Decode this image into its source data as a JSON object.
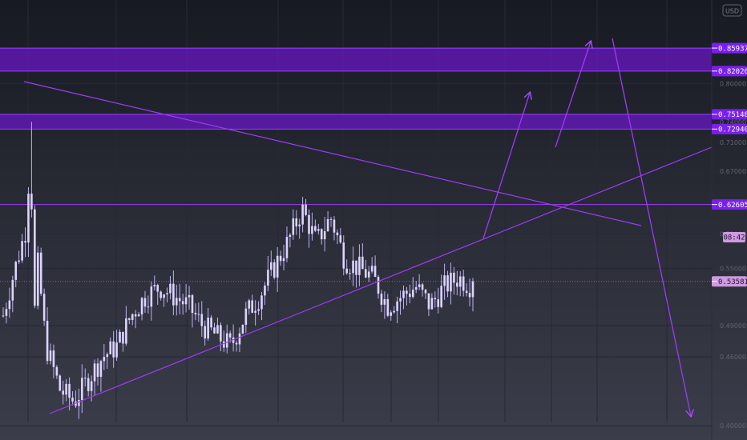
{
  "currency_label": "USD",
  "colors": {
    "background_top": "#181a22",
    "background_bottom": "#3b3d4a",
    "zone_fill": "#6b16c9",
    "zone_border": "#9a40ff",
    "line": "#9b3cf5",
    "candle": "#ddd4ff",
    "wick": "#bdb1f3",
    "tag_fill": "#7a1ff0",
    "tag_text": "#ffffff",
    "axis_text": "#61646f",
    "current_line": "#c04aa8",
    "current_tag": "#cd9bdf"
  },
  "price_tags": [
    {
      "label": "0.85937",
      "value": 0.85937
    },
    {
      "label": "0.82026",
      "value": 0.82026
    },
    {
      "label": "0.75148",
      "value": 0.75148
    },
    {
      "label": "0.72940",
      "value": 0.7294
    },
    {
      "label": "0.62605",
      "value": 0.62605
    },
    {
      "label": "0.53581",
      "value": 0.53581
    }
  ],
  "countdown": "08:42",
  "chart_data": {
    "type": "candlestick",
    "title": "",
    "y_axis": {
      "scale": "log",
      "ylim": [
        0.395,
        0.935
      ],
      "position": "right"
    },
    "y_tick_values": [
      0.8,
      0.74,
      0.71,
      0.67,
      0.59,
      0.55,
      0.49,
      0.46,
      0.4
    ],
    "x_tick_labels": [
      "",
      "",
      "",
      "",
      "",
      "",
      "",
      "",
      "",
      "",
      "",
      "",
      "",
      "",
      ""
    ],
    "grid": true,
    "zones": [
      {
        "from": 0.82026,
        "to": 0.85937
      },
      {
        "from": 0.7294,
        "to": 0.75148
      }
    ],
    "horizontal_levels": [
      0.62605
    ],
    "current_price": 0.53581,
    "approx_closes": [
      0.5,
      0.56,
      0.62,
      0.47,
      0.43,
      0.42,
      0.44,
      0.46,
      0.47,
      0.5,
      0.52,
      0.53,
      0.52,
      0.51,
      0.49,
      0.48,
      0.47,
      0.5,
      0.52,
      0.55,
      0.58,
      0.62,
      0.58,
      0.61,
      0.56,
      0.55,
      0.54,
      0.51,
      0.52,
      0.53,
      0.51,
      0.53,
      0.54,
      0.53
    ]
  }
}
